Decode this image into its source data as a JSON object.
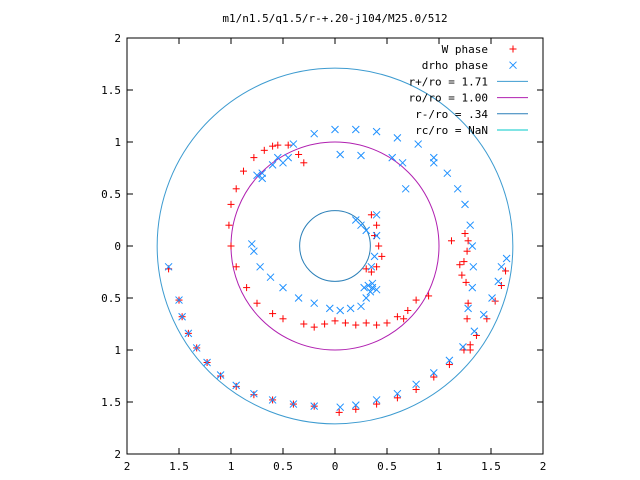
{
  "chart_data": {
    "type": "scatter",
    "title": "m1/n1.5/q1.5/r-+.20-j104/M25.0/512",
    "xlim": [
      -2,
      2
    ],
    "ylim": [
      -2,
      2
    ],
    "x_ticks": [
      -2,
      -1.5,
      -1,
      -0.5,
      0,
      0.5,
      1,
      1.5,
      2
    ],
    "y_ticks": [
      -2,
      -1.5,
      -1,
      -0.5,
      0,
      0.5,
      1,
      1.5,
      2
    ],
    "x_tick_labels": [
      "2",
      "1.5",
      "1",
      "0.5",
      "0",
      "0.5",
      "1",
      "1.5",
      "2"
    ],
    "y_tick_labels": [
      "2",
      "1.5",
      "1",
      "0.5",
      "0",
      "0.5",
      "1",
      "1.5",
      "2"
    ],
    "grid": false,
    "legend_position": "top-right",
    "series": [
      {
        "name": "W phase",
        "marker": "plus",
        "color": "#ff0000",
        "points": [
          [
            0.04,
            -1.6
          ],
          [
            0.2,
            -1.57
          ],
          [
            0.4,
            -1.52
          ],
          [
            0.6,
            -1.46
          ],
          [
            0.78,
            -1.38
          ],
          [
            0.95,
            -1.26
          ],
          [
            1.1,
            -1.14
          ],
          [
            1.24,
            -1.0
          ],
          [
            1.36,
            -0.86
          ],
          [
            1.46,
            -0.7
          ],
          [
            1.54,
            -0.53
          ],
          [
            1.6,
            -0.38
          ],
          [
            1.64,
            -0.24
          ],
          [
            -0.2,
            -1.54
          ],
          [
            -0.4,
            -1.52
          ],
          [
            -0.6,
            -1.48
          ],
          [
            -0.78,
            -1.43
          ],
          [
            -0.95,
            -1.35
          ],
          [
            -1.1,
            -1.25
          ],
          [
            -1.23,
            -1.12
          ],
          [
            -1.33,
            -0.98
          ],
          [
            -1.41,
            -0.84
          ],
          [
            -1.47,
            -0.68
          ],
          [
            -1.5,
            -0.52
          ],
          [
            -1.6,
            -0.22
          ],
          [
            1.25,
            0.12
          ],
          [
            1.28,
            0.05
          ],
          [
            1.27,
            -0.05
          ],
          [
            1.24,
            -0.15
          ],
          [
            1.22,
            -0.28
          ],
          [
            1.2,
            -0.18
          ],
          [
            1.12,
            0.05
          ],
          [
            1.26,
            -0.35
          ],
          [
            1.28,
            -0.55
          ],
          [
            1.27,
            -0.7
          ],
          [
            1.3,
            -0.95
          ],
          [
            1.3,
            -1.0
          ],
          [
            0.9,
            -0.48
          ],
          [
            0.78,
            -0.52
          ],
          [
            0.7,
            -0.62
          ],
          [
            0.66,
            -0.7
          ],
          [
            0.6,
            -0.68
          ],
          [
            0.5,
            -0.74
          ],
          [
            0.4,
            -0.76
          ],
          [
            0.3,
            -0.74
          ],
          [
            0.2,
            -0.76
          ],
          [
            0.1,
            -0.74
          ],
          [
            0.0,
            -0.72
          ],
          [
            -0.1,
            -0.75
          ],
          [
            -0.2,
            -0.78
          ],
          [
            -0.3,
            -0.75
          ],
          [
            -0.5,
            -0.7
          ],
          [
            -0.6,
            -0.65
          ],
          [
            -0.75,
            -0.55
          ],
          [
            -0.85,
            -0.4
          ],
          [
            -0.95,
            -0.2
          ],
          [
            -1.0,
            0.0
          ],
          [
            -1.02,
            0.2
          ],
          [
            -1.0,
            0.4
          ],
          [
            -0.95,
            0.55
          ],
          [
            -0.88,
            0.72
          ],
          [
            -0.78,
            0.85
          ],
          [
            -0.68,
            0.92
          ],
          [
            -0.6,
            0.96
          ],
          [
            -0.55,
            0.97
          ],
          [
            -0.45,
            0.97
          ],
          [
            -0.35,
            0.88
          ],
          [
            -0.3,
            0.8
          ],
          [
            0.38,
            0.1
          ],
          [
            0.42,
            0.0
          ],
          [
            0.45,
            -0.1
          ],
          [
            0.4,
            -0.2
          ],
          [
            0.35,
            -0.25
          ],
          [
            0.3,
            -0.22
          ],
          [
            0.4,
            0.2
          ],
          [
            0.35,
            0.3
          ]
        ]
      },
      {
        "name": "drho phase",
        "marker": "cross",
        "color": "#1e90ff",
        "points": [
          [
            0.05,
            -1.55
          ],
          [
            0.2,
            -1.53
          ],
          [
            0.4,
            -1.48
          ],
          [
            0.6,
            -1.42
          ],
          [
            0.78,
            -1.33
          ],
          [
            0.95,
            -1.22
          ],
          [
            1.1,
            -1.1
          ],
          [
            1.23,
            -0.97
          ],
          [
            1.34,
            -0.82
          ],
          [
            1.43,
            -0.66
          ],
          [
            1.51,
            -0.5
          ],
          [
            1.57,
            -0.34
          ],
          [
            1.6,
            -0.2
          ],
          [
            1.65,
            -0.12
          ],
          [
            -0.2,
            -1.54
          ],
          [
            -0.4,
            -1.52
          ],
          [
            -0.6,
            -1.48
          ],
          [
            -0.78,
            -1.42
          ],
          [
            -0.95,
            -1.34
          ],
          [
            -1.1,
            -1.24
          ],
          [
            -1.23,
            -1.12
          ],
          [
            -1.33,
            -0.98
          ],
          [
            -1.41,
            -0.84
          ],
          [
            -1.47,
            -0.68
          ],
          [
            -1.5,
            -0.52
          ],
          [
            -1.6,
            -0.2
          ],
          [
            -0.7,
            0.7
          ],
          [
            -0.55,
            0.85
          ],
          [
            -0.4,
            0.98
          ],
          [
            -0.2,
            1.08
          ],
          [
            0.0,
            1.12
          ],
          [
            0.2,
            1.12
          ],
          [
            0.4,
            1.1
          ],
          [
            0.6,
            1.04
          ],
          [
            0.8,
            0.98
          ],
          [
            0.95,
            0.85
          ],
          [
            1.08,
            0.7
          ],
          [
            1.18,
            0.55
          ],
          [
            1.25,
            0.4
          ],
          [
            1.3,
            0.2
          ],
          [
            1.32,
            0.0
          ],
          [
            1.33,
            -0.2
          ],
          [
            1.32,
            -0.4
          ],
          [
            1.28,
            -0.6
          ],
          [
            0.95,
            0.8
          ],
          [
            0.65,
            0.8
          ],
          [
            0.55,
            0.85
          ],
          [
            0.05,
            0.88
          ],
          [
            0.25,
            0.87
          ],
          [
            0.68,
            0.55
          ],
          [
            -0.7,
            0.65
          ],
          [
            -0.75,
            0.68
          ],
          [
            -0.6,
            0.78
          ],
          [
            -0.5,
            0.8
          ],
          [
            -0.45,
            0.85
          ],
          [
            0.4,
            0.3
          ],
          [
            0.4,
            0.1
          ],
          [
            0.38,
            -0.1
          ],
          [
            0.35,
            -0.2
          ],
          [
            0.36,
            -0.4
          ],
          [
            0.3,
            -0.5
          ],
          [
            0.25,
            -0.58
          ],
          [
            0.15,
            -0.6
          ],
          [
            0.05,
            -0.62
          ],
          [
            -0.05,
            -0.6
          ],
          [
            -0.2,
            -0.55
          ],
          [
            -0.35,
            -0.5
          ],
          [
            -0.5,
            -0.4
          ],
          [
            -0.62,
            -0.3
          ],
          [
            -0.72,
            -0.2
          ],
          [
            -0.78,
            -0.05
          ],
          [
            -0.8,
            0.02
          ],
          [
            0.28,
            -0.4
          ],
          [
            0.32,
            -0.38
          ],
          [
            0.36,
            -0.36
          ],
          [
            0.34,
            -0.44
          ],
          [
            0.4,
            -0.42
          ],
          [
            0.2,
            0.25
          ],
          [
            0.25,
            0.2
          ],
          [
            0.3,
            0.15
          ]
        ]
      }
    ],
    "reference_circles": [
      {
        "name": "r+/ro = 1.71",
        "radius": 1.71,
        "color": "#3d9bd0"
      },
      {
        "name": "ro/ro = 1.00",
        "radius": 1.0,
        "color": "#b020b0"
      },
      {
        "name": "r-/ro = .34",
        "radius": 0.34,
        "color": "#2a7fb8"
      },
      {
        "name": "rc/ro = NaN",
        "radius": null,
        "color": "#00c8c8"
      }
    ],
    "legend": [
      {
        "label": "W phase",
        "type": "plus",
        "color": "#ff0000"
      },
      {
        "label": "drho phase",
        "type": "cross",
        "color": "#1e90ff"
      },
      {
        "label": "r+/ro = 1.71",
        "type": "line",
        "color": "#3d9bd0"
      },
      {
        "label": "ro/ro = 1.00",
        "type": "line",
        "color": "#b020b0"
      },
      {
        "label": "r-/ro = .34",
        "type": "line",
        "color": "#2a7fb8"
      },
      {
        "label": "rc/ro = NaN",
        "type": "line",
        "color": "#00c8c8"
      }
    ]
  }
}
